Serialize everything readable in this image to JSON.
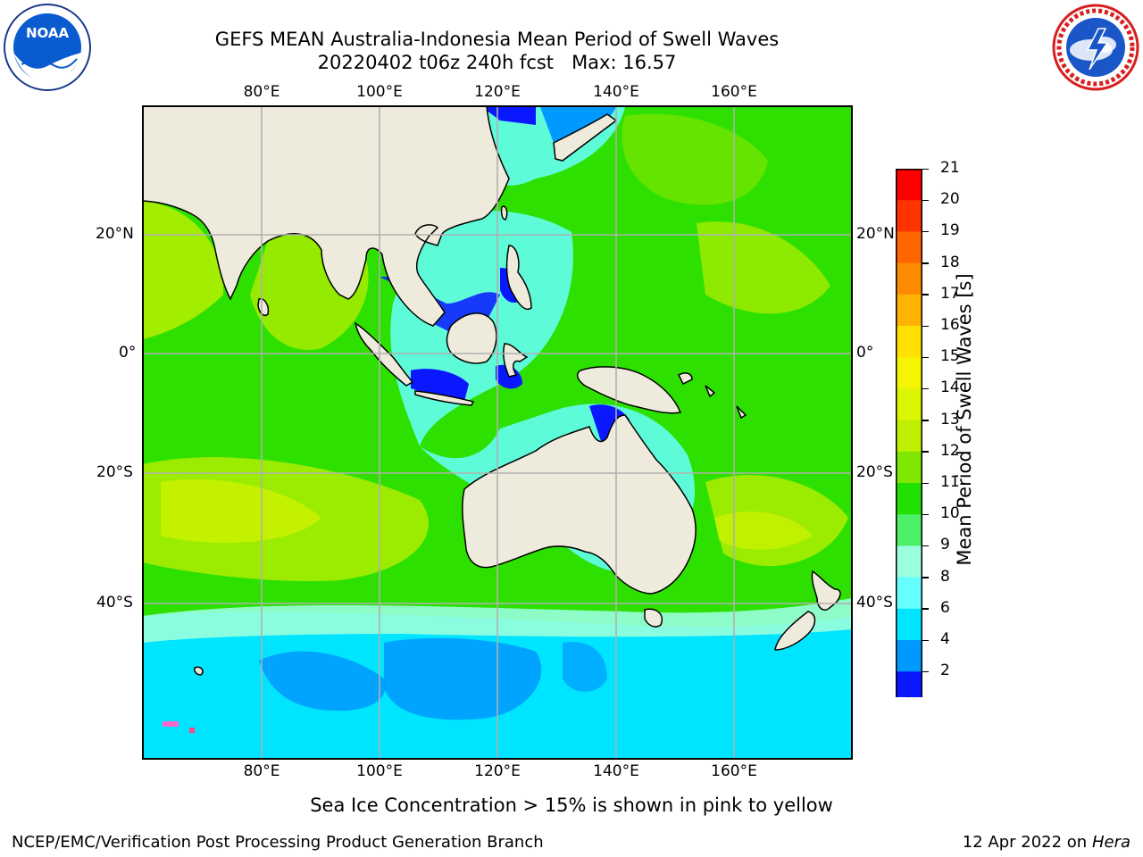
{
  "header": {
    "title_line1": "GEFS MEAN Australia-Indonesia Mean Period of Swell Waves",
    "title_line2": "20220402 t06z 240h fcst   Max: 16.57"
  },
  "logos": {
    "left": {
      "name": "NOAA",
      "text": "NOAA"
    },
    "right": {
      "name": "National Weather Service"
    }
  },
  "map": {
    "lon_labels": [
      "80°E",
      "100°E",
      "120°E",
      "140°E",
      "160°E"
    ],
    "lat_labels": [
      "20°N",
      "0°",
      "20°S",
      "40°S"
    ],
    "colors": {
      "land": "#efebdc",
      "grid": "#b0b0b0",
      "coast": "#000000"
    }
  },
  "colorbar": {
    "label": "Mean Period of Swell Waves [s]",
    "ticks": [
      "21",
      "20",
      "19",
      "18",
      "17",
      "16",
      "15",
      "14",
      "13",
      "12",
      "11",
      "10",
      "9",
      "8",
      "6",
      "4",
      "2"
    ],
    "bands": [
      "#ff0000",
      "#ff3300",
      "#ff6600",
      "#ff8c00",
      "#ffb300",
      "#ffe000",
      "#f5f500",
      "#dcf500",
      "#c0f000",
      "#7ee600",
      "#22e000",
      "#4cf068",
      "#99ffdd",
      "#66ffff",
      "#00e5ff",
      "#0099ff",
      "#0a18ff"
    ]
  },
  "footer": {
    "note": "Sea Ice Concentration > 15% is shown in pink to yellow",
    "credit": "NCEP/EMC/Verification Post Processing Product Generation Branch",
    "date": "12 Apr 2022 on ",
    "machine": "Hera"
  }
}
